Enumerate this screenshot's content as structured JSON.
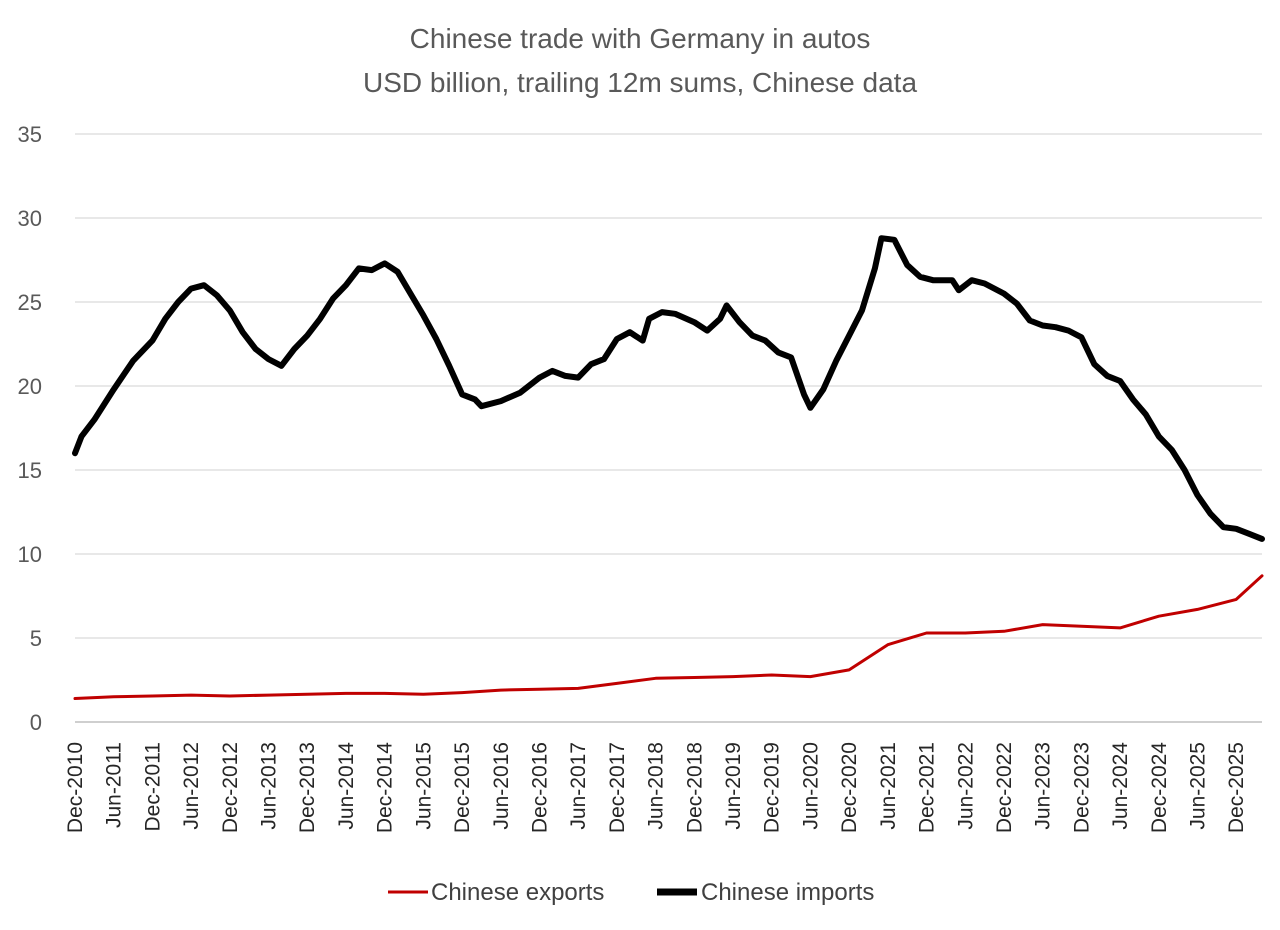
{
  "chart_data": {
    "type": "line",
    "title": "Chinese trade with Germany in autos",
    "subtitle": "USD billion, trailing 12m sums, Chinese data",
    "xlabel": "",
    "ylabel": "",
    "ylim": [
      0,
      35
    ],
    "yticks": [
      0,
      5,
      10,
      15,
      20,
      25,
      30,
      35
    ],
    "grid": true,
    "legend_position": "bottom",
    "x_start": "Dec-2010",
    "x_end": "Apr-2026",
    "x_tick_labels": [
      "Dec-2010",
      "Jun-2011",
      "Dec-2011",
      "Jun-2012",
      "Dec-2012",
      "Jun-2013",
      "Dec-2013",
      "Jun-2014",
      "Dec-2014",
      "Jun-2015",
      "Dec-2015",
      "Jun-2016",
      "Dec-2016",
      "Jun-2017",
      "Dec-2017",
      "Jun-2018",
      "Dec-2018",
      "Jun-2019",
      "Dec-2019",
      "Jun-2020",
      "Dec-2020",
      "Jun-2021",
      "Dec-2021",
      "Jun-2022",
      "Dec-2022",
      "Jun-2023",
      "Dec-2023",
      "Jun-2024",
      "Dec-2024",
      "Jun-2025",
      "Dec-2025"
    ],
    "series": [
      {
        "name": "Chinese exports",
        "color": "#c00000",
        "points": [
          [
            "Dec-2010",
            1.4
          ],
          [
            "Jun-2011",
            1.5
          ],
          [
            "Dec-2011",
            1.55
          ],
          [
            "Jun-2012",
            1.6
          ],
          [
            "Dec-2012",
            1.55
          ],
          [
            "Jun-2013",
            1.6
          ],
          [
            "Dec-2013",
            1.65
          ],
          [
            "Jun-2014",
            1.7
          ],
          [
            "Dec-2014",
            1.7
          ],
          [
            "Jun-2015",
            1.65
          ],
          [
            "Dec-2015",
            1.75
          ],
          [
            "Jun-2016",
            1.9
          ],
          [
            "Dec-2016",
            1.95
          ],
          [
            "Jun-2017",
            2.0
          ],
          [
            "Dec-2017",
            2.3
          ],
          [
            "Jun-2018",
            2.6
          ],
          [
            "Dec-2018",
            2.65
          ],
          [
            "Jun-2019",
            2.7
          ],
          [
            "Dec-2019",
            2.8
          ],
          [
            "Jun-2020",
            2.7
          ],
          [
            "Dec-2020",
            3.1
          ],
          [
            "Jun-2021",
            4.6
          ],
          [
            "Dec-2021",
            5.3
          ],
          [
            "Jun-2022",
            5.3
          ],
          [
            "Dec-2022",
            5.4
          ],
          [
            "Jun-2023",
            5.8
          ],
          [
            "Dec-2023",
            5.7
          ],
          [
            "Jun-2024",
            5.6
          ],
          [
            "Dec-2024",
            6.3
          ],
          [
            "Jun-2025",
            6.7
          ],
          [
            "Dec-2025",
            7.3
          ],
          [
            "Apr-2026",
            8.7
          ]
        ]
      },
      {
        "name": "Chinese imports",
        "color": "#000000",
        "points": [
          [
            "Dec-2010",
            16.0
          ],
          [
            "Jan-2011",
            17.0
          ],
          [
            "Mar-2011",
            18.0
          ],
          [
            "Jun-2011",
            19.8
          ],
          [
            "Sep-2011",
            21.5
          ],
          [
            "Dec-2011",
            22.7
          ],
          [
            "Feb-2012",
            24.0
          ],
          [
            "Apr-2012",
            25.0
          ],
          [
            "Jun-2012",
            25.8
          ],
          [
            "Aug-2012",
            26.0
          ],
          [
            "Oct-2012",
            25.4
          ],
          [
            "Dec-2012",
            24.5
          ],
          [
            "Feb-2013",
            23.2
          ],
          [
            "Apr-2013",
            22.2
          ],
          [
            "Jun-2013",
            21.6
          ],
          [
            "Aug-2013",
            21.2
          ],
          [
            "Oct-2013",
            22.2
          ],
          [
            "Dec-2013",
            23.0
          ],
          [
            "Feb-2014",
            24.0
          ],
          [
            "Apr-2014",
            25.2
          ],
          [
            "Jun-2014",
            26.0
          ],
          [
            "Aug-2014",
            27.0
          ],
          [
            "Oct-2014",
            26.9
          ],
          [
            "Dec-2014",
            27.3
          ],
          [
            "Feb-2015",
            26.8
          ],
          [
            "Apr-2015",
            25.5
          ],
          [
            "Jun-2015",
            24.2
          ],
          [
            "Aug-2015",
            22.8
          ],
          [
            "Oct-2015",
            21.2
          ],
          [
            "Dec-2015",
            19.5
          ],
          [
            "Feb-2016",
            19.2
          ],
          [
            "Mar-2016",
            18.8
          ],
          [
            "Jun-2016",
            19.1
          ],
          [
            "Sep-2016",
            19.6
          ],
          [
            "Dec-2016",
            20.5
          ],
          [
            "Feb-2017",
            20.9
          ],
          [
            "Apr-2017",
            20.6
          ],
          [
            "Jun-2017",
            20.5
          ],
          [
            "Aug-2017",
            21.3
          ],
          [
            "Oct-2017",
            21.6
          ],
          [
            "Dec-2017",
            22.8
          ],
          [
            "Feb-2018",
            23.2
          ],
          [
            "Apr-2018",
            22.7
          ],
          [
            "May-2018",
            24.0
          ],
          [
            "Jul-2018",
            24.4
          ],
          [
            "Sep-2018",
            24.3
          ],
          [
            "Dec-2018",
            23.8
          ],
          [
            "Feb-2019",
            23.3
          ],
          [
            "Apr-2019",
            24.0
          ],
          [
            "May-2019",
            24.8
          ],
          [
            "Jul-2019",
            23.8
          ],
          [
            "Sep-2019",
            23.0
          ],
          [
            "Nov-2019",
            22.7
          ],
          [
            "Jan-2020",
            22.0
          ],
          [
            "Mar-2020",
            21.7
          ],
          [
            "May-2020",
            19.5
          ],
          [
            "Jun-2020",
            18.7
          ],
          [
            "Aug-2020",
            19.8
          ],
          [
            "Oct-2020",
            21.5
          ],
          [
            "Dec-2020",
            23.0
          ],
          [
            "Feb-2021",
            24.5
          ],
          [
            "Apr-2021",
            27.0
          ],
          [
            "May-2021",
            28.8
          ],
          [
            "Jul-2021",
            28.7
          ],
          [
            "Sep-2021",
            27.2
          ],
          [
            "Nov-2021",
            26.5
          ],
          [
            "Jan-2022",
            26.3
          ],
          [
            "Apr-2022",
            26.3
          ],
          [
            "May-2022",
            25.7
          ],
          [
            "Jul-2022",
            26.3
          ],
          [
            "Sep-2022",
            26.1
          ],
          [
            "Dec-2022",
            25.5
          ],
          [
            "Feb-2023",
            24.9
          ],
          [
            "Apr-2023",
            23.9
          ],
          [
            "Jun-2023",
            23.6
          ],
          [
            "Aug-2023",
            23.5
          ],
          [
            "Oct-2023",
            23.3
          ],
          [
            "Dec-2023",
            22.9
          ],
          [
            "Feb-2024",
            21.3
          ],
          [
            "Apr-2024",
            20.6
          ],
          [
            "Jun-2024",
            20.3
          ],
          [
            "Aug-2024",
            19.2
          ],
          [
            "Oct-2024",
            18.3
          ],
          [
            "Dec-2024",
            17.0
          ],
          [
            "Feb-2025",
            16.2
          ],
          [
            "Apr-2025",
            15.0
          ],
          [
            "Jun-2025",
            13.5
          ],
          [
            "Aug-2025",
            12.4
          ],
          [
            "Oct-2025",
            11.6
          ],
          [
            "Dec-2025",
            11.5
          ],
          [
            "Feb-2026",
            11.2
          ],
          [
            "Apr-2026",
            10.9
          ]
        ]
      }
    ]
  }
}
